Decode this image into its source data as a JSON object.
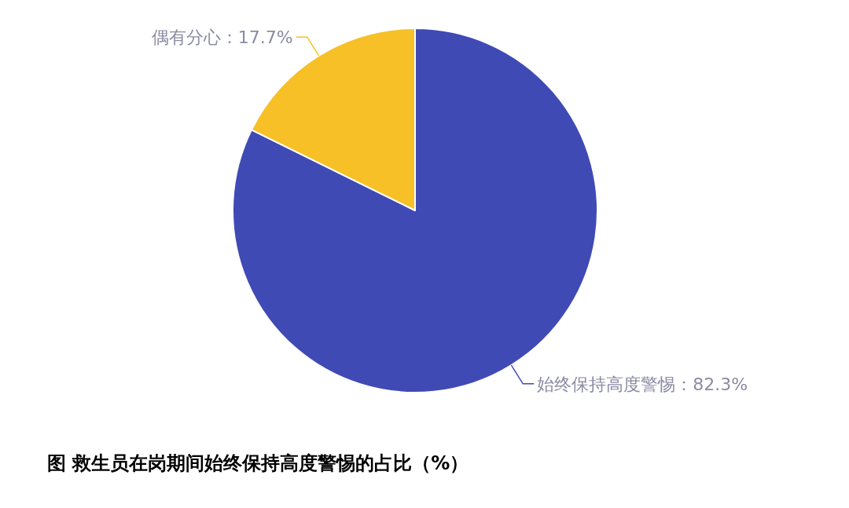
{
  "chart_data": {
    "type": "pie",
    "title": "图  救生员在岗期间始终保持高度警惕的占比（%）",
    "categories": [
      "始终保持高度警惕",
      "偶有分心"
    ],
    "values": [
      82.3,
      17.7
    ],
    "value_labels": [
      "：82.3%",
      "：17.7%"
    ],
    "colors": [
      "#3f4ab5",
      "#f6c026"
    ]
  }
}
